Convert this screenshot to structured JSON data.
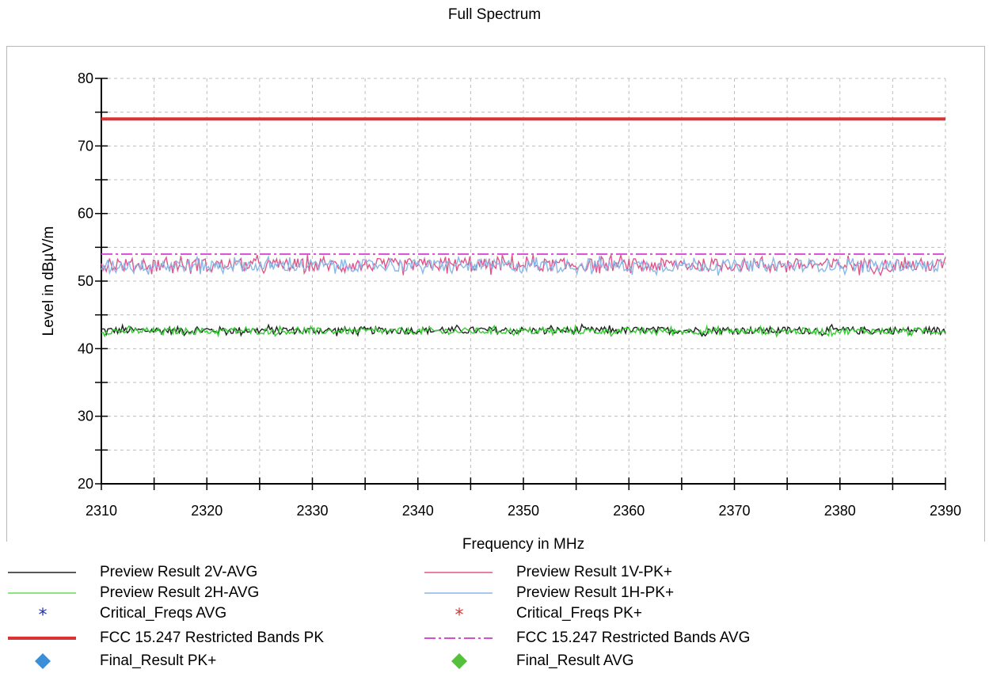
{
  "chart_data": {
    "type": "line",
    "title": "Full Spectrum",
    "xlabel": "Frequency in MHz",
    "ylabel": "Level in dBµV/m",
    "xlim": [
      2310,
      2390
    ],
    "ylim": [
      20,
      80
    ],
    "x_ticks": [
      2310,
      2320,
      2330,
      2340,
      2350,
      2360,
      2370,
      2380,
      2390
    ],
    "y_ticks": [
      20,
      30,
      40,
      50,
      60,
      70,
      80
    ],
    "grid": true,
    "series": [
      {
        "name": "Preview Result 2V-AVG",
        "color": "#202020",
        "style": "noise",
        "mean": 42.7,
        "noise": 0.9
      },
      {
        "name": "Preview Result 2H-AVG",
        "color": "#33cc33",
        "style": "noise",
        "mean": 42.6,
        "noise": 0.8
      },
      {
        "name": "Preview Result 1V-PK+",
        "color": "#e0558a",
        "style": "noise",
        "mean": 52.4,
        "noise": 1.6
      },
      {
        "name": "Preview Result 1H-PK+",
        "color": "#8ab8e6",
        "style": "noise",
        "mean": 52.3,
        "noise": 1.5
      },
      {
        "name": "FCC 15.247 Restricted Bands PK",
        "color": "#d93333",
        "style": "limit",
        "value": 74
      },
      {
        "name": "FCC 15.247 Restricted Bands AVG",
        "color": "#d24fd2",
        "style": "limit-dash",
        "value": 54
      }
    ]
  },
  "legend": [
    {
      "label": "Preview Result 2V-AVG",
      "symbol": "line",
      "color": "#202020",
      "col": 0,
      "row": 0
    },
    {
      "label": "Preview Result 1V-PK+",
      "symbol": "line",
      "color": "#e0558a",
      "col": 1,
      "row": 0
    },
    {
      "label": "Preview Result 2H-AVG",
      "symbol": "line",
      "color": "#66dd55",
      "col": 0,
      "row": 1
    },
    {
      "label": "Preview Result 1H-PK+",
      "symbol": "line",
      "color": "#8ab8e6",
      "col": 1,
      "row": 1
    },
    {
      "label": "Critical_Freqs AVG",
      "symbol": "star",
      "color": "#1f2fb5",
      "col": 0,
      "row": 2
    },
    {
      "label": "Critical_Freqs PK+",
      "symbol": "star",
      "color": "#d93333",
      "col": 1,
      "row": 2
    },
    {
      "label": "FCC 15.247 Restricted Bands PK",
      "symbol": "thick-line",
      "color": "#d93333",
      "col": 0,
      "row": 3
    },
    {
      "label": "FCC 15.247 Restricted Bands AVG",
      "symbol": "dashdot",
      "color": "#d24fd2",
      "col": 1,
      "row": 3
    },
    {
      "label": "Final_Result PK+",
      "symbol": "diamond",
      "color": "#3a8fd8",
      "col": 0,
      "row": 4
    },
    {
      "label": "Final_Result AVG",
      "symbol": "diamond",
      "color": "#55c13a",
      "col": 1,
      "row": 4
    }
  ]
}
